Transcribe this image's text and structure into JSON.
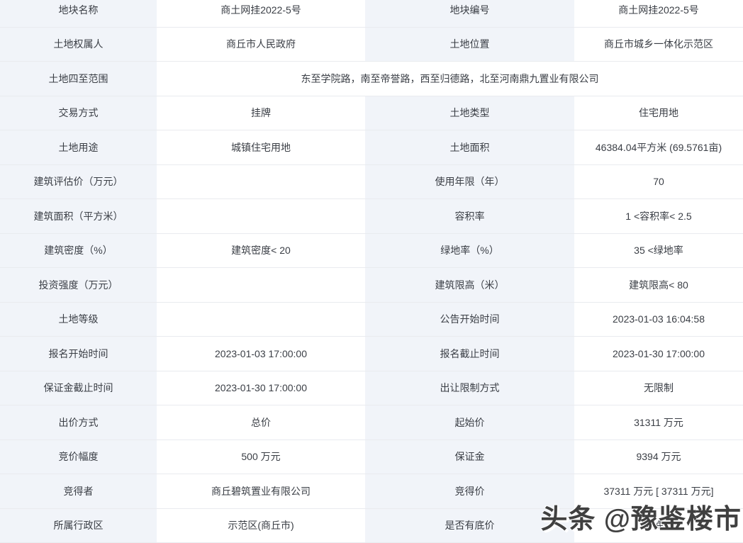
{
  "colors": {
    "label_cell_bg": "#f1f4f9",
    "value_cell_bg": "#ffffff",
    "row_border": "#e9ebef",
    "text": "#3a3e45",
    "watermark_text": "#404040"
  },
  "table": {
    "rows": [
      {
        "l1": "地块名称",
        "v1": "商土网挂2022-5号",
        "l2": "地块编号",
        "v2": "商土网挂2022-5号"
      },
      {
        "l1": "土地权属人",
        "v1": "商丘市人民政府",
        "l2": "土地位置",
        "v2": "商丘市城乡一体化示范区"
      },
      {
        "span": true,
        "l1": "土地四至范围",
        "v1": "东至学院路，南至帝誉路，西至归德路，北至河南鼎九置业有限公司"
      },
      {
        "l1": "交易方式",
        "v1": "挂牌",
        "l2": "土地类型",
        "v2": "住宅用地"
      },
      {
        "l1": "土地用途",
        "v1": "城镇住宅用地",
        "l2": "土地面积",
        "v2": "46384.04平方米 (69.5761亩)"
      },
      {
        "l1": "建筑评估价（万元）",
        "v1": "",
        "l2": "使用年限（年）",
        "v2": "70"
      },
      {
        "l1": "建筑面积（平方米）",
        "v1": "",
        "l2": "容积率",
        "v2": "1 <容积率< 2.5"
      },
      {
        "l1": "建筑密度（%）",
        "v1": "建筑密度< 20",
        "l2": "绿地率（%）",
        "v2": "35 <绿地率"
      },
      {
        "l1": "投资强度（万元）",
        "v1": "",
        "l2": "建筑限高（米）",
        "v2": "建筑限高< 80"
      },
      {
        "l1": "土地等级",
        "v1": "",
        "l2": "公告开始时间",
        "v2": "2023-01-03 16:04:58"
      },
      {
        "l1": "报名开始时间",
        "v1": "2023-01-03 17:00:00",
        "l2": "报名截止时间",
        "v2": "2023-01-30 17:00:00"
      },
      {
        "l1": "保证金截止时间",
        "v1": "2023-01-30 17:00:00",
        "l2": "出让限制方式",
        "v2": "无限制"
      },
      {
        "l1": "出价方式",
        "v1": "总价",
        "l2": "起始价",
        "v2": "31311 万元"
      },
      {
        "l1": "竞价幅度",
        "v1": "500 万元",
        "l2": "保证金",
        "v2": "9394 万元"
      },
      {
        "l1": "竞得者",
        "v1": "商丘碧筑置业有限公司",
        "l2": "竞得价",
        "v2": "37311 万元 [ 37311 万元]"
      },
      {
        "l1": "所属行政区",
        "v1": "示范区(商丘市)",
        "l2": "是否有底价",
        "v2": "无底价"
      }
    ]
  },
  "watermark": {
    "text": "头条 @豫鉴楼市"
  }
}
